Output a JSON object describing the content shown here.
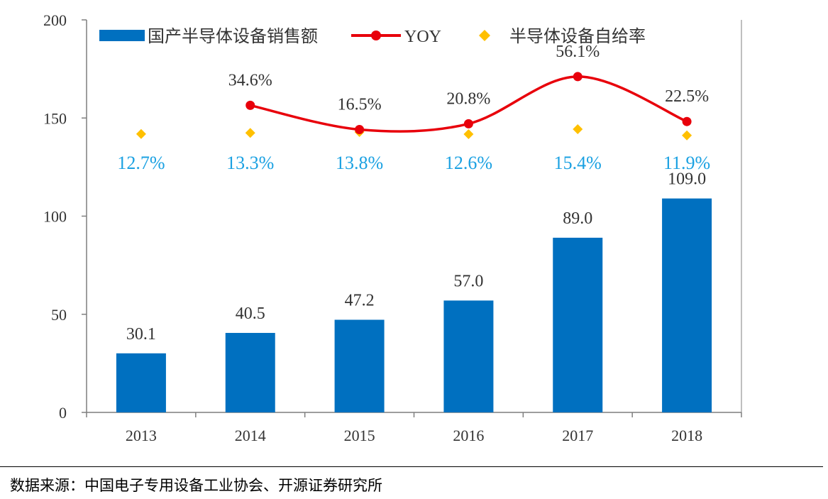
{
  "chart_data": {
    "type": "bar",
    "categories": [
      "2013",
      "2014",
      "2015",
      "2016",
      "2017",
      "2018"
    ],
    "ylim": [
      0,
      200
    ],
    "yticks": [
      "0",
      "50",
      "100",
      "150",
      "200"
    ],
    "series": [
      {
        "name": "国产半导体设备销售额",
        "type": "bar",
        "color": "#0070c0",
        "values": [
          30.1,
          40.5,
          47.2,
          57.0,
          89.0,
          109.0
        ],
        "labels": [
          "30.1",
          "40.5",
          "47.2",
          "57.0",
          "89.0",
          "109.0"
        ]
      },
      {
        "name": "YOY",
        "type": "line",
        "color": "#e8000b",
        "values": [
          null,
          34.6,
          16.5,
          20.8,
          56.1,
          22.5
        ],
        "labels": [
          "",
          "34.6%",
          "16.5%",
          "20.8%",
          "56.1%",
          "22.5%"
        ]
      },
      {
        "name": "半导体设备自给率",
        "type": "scatter",
        "marker": "diamond",
        "color": "#ffc000",
        "label_color": "#1ba1e2",
        "values": [
          12.7,
          13.3,
          13.8,
          12.6,
          15.4,
          11.9
        ],
        "labels": [
          "12.7%",
          "13.3%",
          "13.8%",
          "12.6%",
          "15.4%",
          "11.9%"
        ]
      }
    ],
    "legend": {
      "position": "top",
      "items": [
        "国产半导体设备销售额",
        "YOY",
        "半导体设备自给率"
      ]
    },
    "grid": false
  },
  "footer": {
    "source": "数据来源：中国电子专用设备工业协会、开源证券研究所"
  }
}
